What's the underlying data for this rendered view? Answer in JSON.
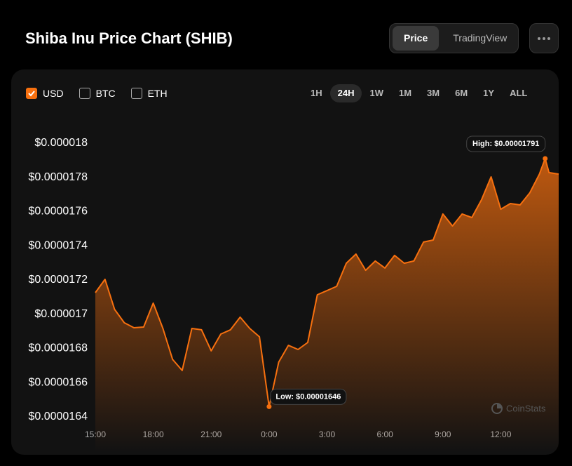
{
  "header": {
    "title": "Shiba Inu Price Chart (SHIB)",
    "tabs": [
      "Price",
      "TradingView"
    ],
    "active_tab": "Price"
  },
  "currencies": {
    "options": [
      "USD",
      "BTC",
      "ETH"
    ],
    "checked": [
      "USD"
    ]
  },
  "ranges": {
    "options": [
      "1H",
      "24H",
      "1W",
      "1M",
      "3M",
      "6M",
      "1Y",
      "ALL"
    ],
    "active": "24H"
  },
  "watermark": "CoinStats",
  "chart_data": {
    "type": "area",
    "color": "#f7700f",
    "x": [
      0,
      0.5,
      1,
      1.5,
      2,
      2.5,
      3,
      3.5,
      4,
      4.5,
      5,
      5.5,
      6,
      6.5,
      7,
      7.5,
      8,
      8.5,
      9,
      9.5,
      10,
      10.5,
      11,
      11.5,
      12,
      12.5,
      13,
      13.5,
      14,
      14.5,
      15,
      15.5,
      16,
      16.5,
      17,
      17.5,
      18,
      18.5,
      19,
      19.5,
      20,
      20.5,
      21,
      21.5,
      22,
      22.5,
      23,
      23.3,
      23.5,
      24
    ],
    "values": [
      1.7126e-05,
      1.7204e-05,
      1.7028e-05,
      1.695e-05,
      1.6921e-05,
      1.6925e-05,
      1.7065e-05,
      1.6917e-05,
      1.6736e-05,
      1.6671e-05,
      1.6917e-05,
      1.6909e-05,
      1.6786e-05,
      1.6884e-05,
      1.6909e-05,
      1.6983e-05,
      1.6917e-05,
      1.6868e-05,
      1.646e-05,
      1.672e-05,
      1.6818e-05,
      1.6794e-05,
      1.6835e-05,
      1.7114e-05,
      1.7138e-05,
      1.7163e-05,
      1.7298e-05,
      1.7352e-05,
      1.7257e-05,
      1.7311e-05,
      1.727e-05,
      1.7344e-05,
      1.7298e-05,
      1.7311e-05,
      1.7422e-05,
      1.7434e-05,
      1.7586e-05,
      1.7516e-05,
      1.7586e-05,
      1.7565e-05,
      1.7668e-05,
      1.7803e-05,
      1.7614e-05,
      1.7647e-05,
      1.7639e-05,
      1.7709e-05,
      1.7819e-05,
      1.791e-05,
      1.7828e-05,
      1.7819e-05
    ],
    "xlim": [
      0,
      24
    ],
    "xticks": [
      {
        "value": 0,
        "label": "15:00"
      },
      {
        "value": 3,
        "label": "18:00"
      },
      {
        "value": 6,
        "label": "21:00"
      },
      {
        "value": 9,
        "label": "0:00"
      },
      {
        "value": 12,
        "label": "3:00"
      },
      {
        "value": 15,
        "label": "6:00"
      },
      {
        "value": 18,
        "label": "9:00"
      },
      {
        "value": 21,
        "label": "12:00"
      }
    ],
    "ylim": [
      1.64e-05,
      1.8e-05
    ],
    "yticks": [
      {
        "value": 1.64e-05,
        "label": "$0.0000164"
      },
      {
        "value": 1.66e-05,
        "label": "$0.0000166"
      },
      {
        "value": 1.68e-05,
        "label": "$0.0000168"
      },
      {
        "value": 1.7e-05,
        "label": "$0.000017"
      },
      {
        "value": 1.72e-05,
        "label": "$0.0000172"
      },
      {
        "value": 1.74e-05,
        "label": "$0.0000174"
      },
      {
        "value": 1.76e-05,
        "label": "$0.0000176"
      },
      {
        "value": 1.78e-05,
        "label": "$0.0000178"
      },
      {
        "value": 1.8e-05,
        "label": "$0.000018"
      }
    ],
    "high_label": "High: $0.00001791",
    "low_label": "Low: $0.00001646"
  }
}
